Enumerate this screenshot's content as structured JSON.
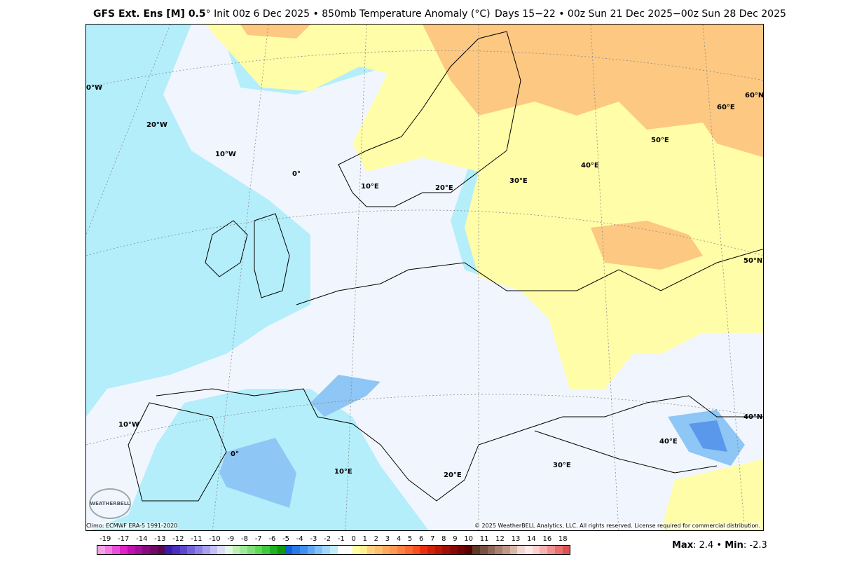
{
  "header": {
    "model": "GFS Ext.  Ens [M] 0.5",
    "degree": "°",
    "init": " Init 00z 6 Dec 2025 • 850mb Temperature Anomaly (°C)",
    "valid": "Days 15−22 • 00z Sun 21 Dec 2025−00z Sun 28 Dec 2025"
  },
  "map": {
    "region": "Europe",
    "colors": {
      "cyan": "#b4eefa",
      "pale": "#f1f6fe",
      "yellow": "#fffda8",
      "orange": "#fdc882",
      "blue": "#8ec6f6",
      "deep_blue": "#5a98ec"
    },
    "grid_labels": [
      "0°W",
      "20°W",
      "10°W",
      "0°",
      "10°E",
      "20°E",
      "30°E",
      "40°E",
      "50°E",
      "60°E",
      "60°N",
      "50°N",
      "40°N",
      "40°E",
      "30°E",
      "20°E",
      "10°E",
      "0°",
      "10°W"
    ]
  },
  "footer": {
    "climo": "Climo: ECMWF ERA-5 1991-2020",
    "copyright": "© 2025 WeatherBELL Analytics, LLC. All rights reserved. License required for commercial distribution.",
    "logo_text": "WEATHERBELL",
    "max_label": "Max",
    "max_value": ": 2.4 • ",
    "min_label": "Min",
    "min_value": ": -2.3"
  },
  "colorbar": {
    "labels": [
      "-19",
      "-17",
      "-14",
      "-13",
      "-12",
      "-11",
      "-10",
      "-9",
      "-8",
      "-7",
      "-6",
      "-5",
      "-4",
      "-3",
      "-2",
      "-1",
      "0",
      "1",
      "2",
      "3",
      "4",
      "5",
      "6",
      "7",
      "8",
      "9",
      "10",
      "11",
      "12",
      "13",
      "14",
      "16",
      "18"
    ],
    "colors": [
      "#f7a0e8",
      "#f07ee0",
      "#e84fd6",
      "#e020c8",
      "#c010b0",
      "#a01098",
      "#880a80",
      "#700868",
      "#58084f",
      "#3a1aa8",
      "#4a2ec0",
      "#5c48d0",
      "#7464dc",
      "#8c80e4",
      "#a8a0ee",
      "#c4c0f4",
      "#dcdcf8",
      "#e0f8e0",
      "#c0f0b8",
      "#a0e898",
      "#80e078",
      "#60d858",
      "#40c840",
      "#20b020",
      "#109810",
      "#1060d8",
      "#2878e8",
      "#4090f0",
      "#60a8f4",
      "#80c0f8",
      "#a0d8fa",
      "#c0ecfc",
      "#ffffff",
      "#ffffff",
      "#ffffa0",
      "#fff090",
      "#ffd080",
      "#ffc070",
      "#ffa860",
      "#ff9850",
      "#ff8040",
      "#ff6830",
      "#f85020",
      "#e83010",
      "#d02008",
      "#b81808",
      "#a01008",
      "#880808",
      "#700404",
      "#580000",
      "#603828",
      "#785040",
      "#906858",
      "#a88070",
      "#c09888",
      "#d8b8a8",
      "#f0d8d0",
      "#ffe8e8",
      "#ffd0d0",
      "#f8b0b0",
      "#f09090",
      "#e87070",
      "#e05050"
    ]
  }
}
